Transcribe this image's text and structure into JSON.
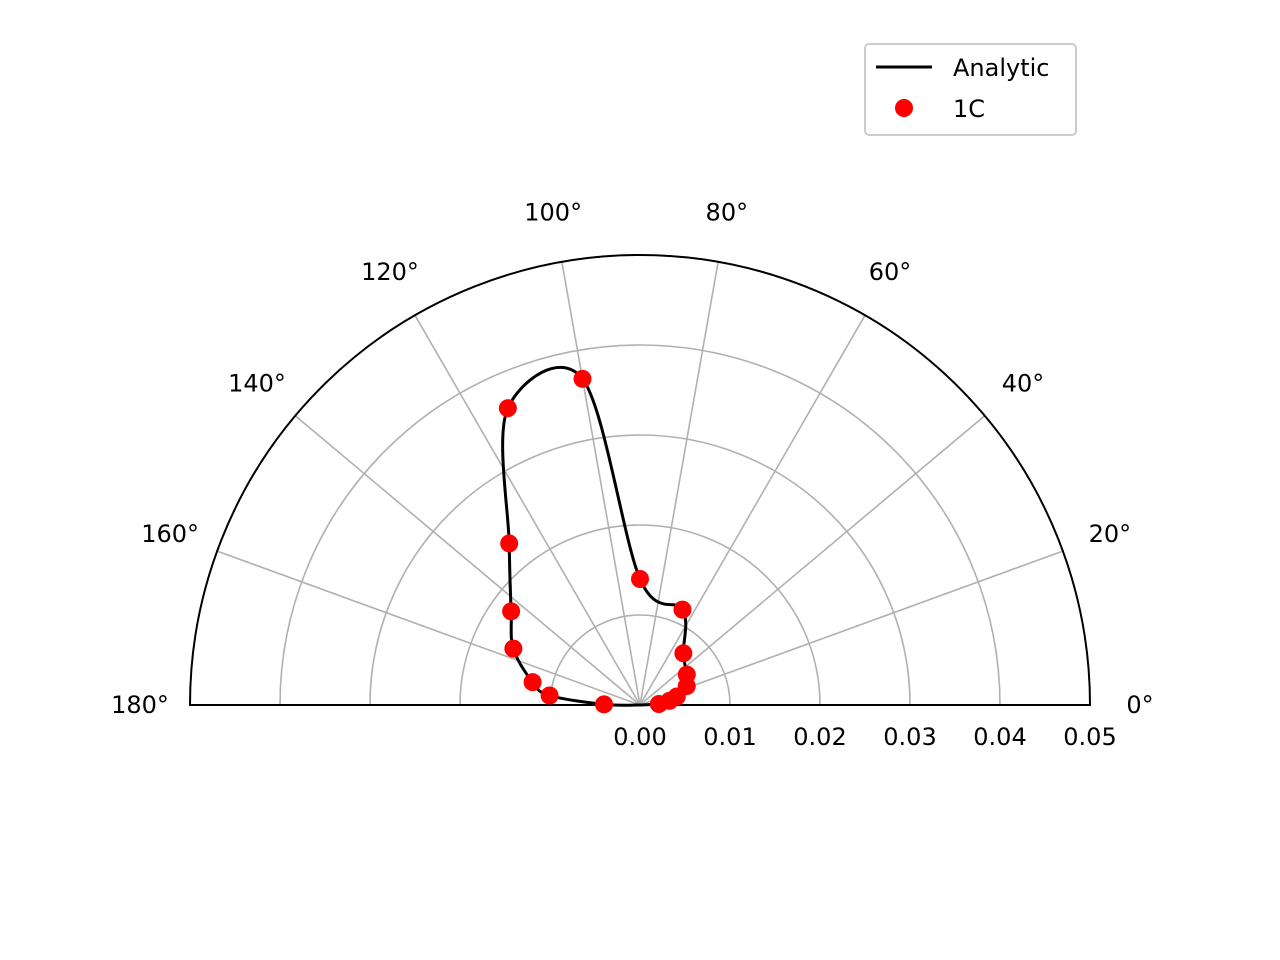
{
  "chart_data": {
    "type": "scatter",
    "projection": "polar",
    "theta_range_deg": [
      0,
      180
    ],
    "r_range": [
      0,
      0.05
    ],
    "grid": true,
    "theta_ticks": [
      "0°",
      "20°",
      "40°",
      "60°",
      "80°",
      "100°",
      "120°",
      "140°",
      "160°",
      "180°"
    ],
    "theta_tick_values": [
      0,
      20,
      40,
      60,
      80,
      100,
      120,
      140,
      160,
      180
    ],
    "r_ticks": [
      "0.00",
      "0.01",
      "0.02",
      "0.03",
      "0.04",
      "0.05"
    ],
    "r_tick_values": [
      0,
      0.01,
      0.02,
      0.03,
      0.04,
      0.05
    ],
    "legend": {
      "position": "top-right"
    },
    "series": [
      {
        "name": "Analytic",
        "kind": "line",
        "color": "#000000",
        "model": "r = 0.04 · sin(θ+10°)^2 · cos(θ−α) style lobe",
        "points": []
      },
      {
        "name": "1C",
        "kind": "markers",
        "color": "#ff0000",
        "theta_deg": [
          3,
          8,
          13,
          22,
          33,
          50,
          66,
          90,
          100,
          114,
          129,
          144,
          156,
          168,
          174,
          179
        ],
        "r": [
          0.0021,
          0.0033,
          0.0042,
          0.0056,
          0.0062,
          0.0075,
          0.0116,
          0.014,
          0.0368,
          0.0361,
          0.0231,
          0.0177,
          0.0154,
          0.0122,
          0.0101,
          0.004
        ]
      }
    ]
  }
}
